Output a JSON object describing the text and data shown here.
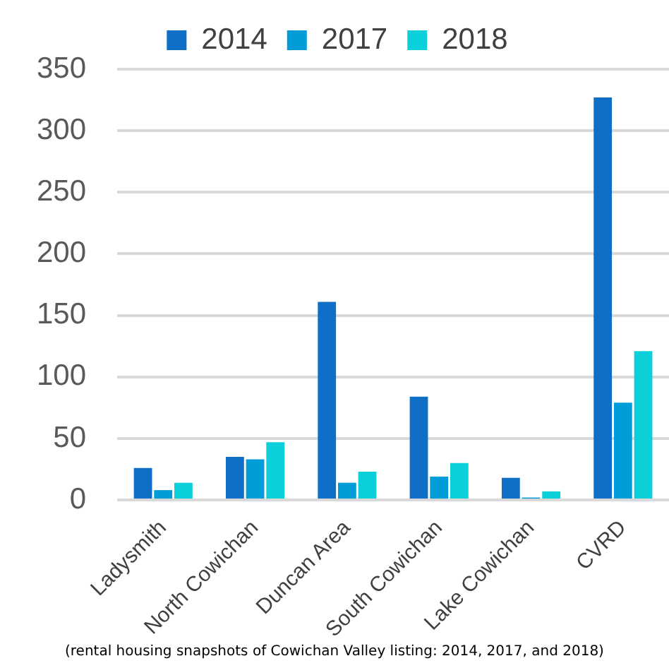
{
  "chart_data": {
    "type": "bar",
    "categories": [
      "Ladysmith",
      "North Cowichan",
      "Duncan Area",
      "South Cowichan",
      "Lake Cowichan",
      "CVRD"
    ],
    "series": [
      {
        "name": "2014",
        "color": "#0f6fc6",
        "values": [
          26,
          35,
          161,
          84,
          18,
          327
        ]
      },
      {
        "name": "2017",
        "color": "#009dd9",
        "values": [
          8,
          33,
          14,
          19,
          2,
          79
        ]
      },
      {
        "name": "2018",
        "color": "#0bd0d9",
        "values": [
          14,
          47,
          23,
          30,
          7,
          121
        ]
      }
    ],
    "ylim": [
      0,
      350
    ],
    "yticks": [
      0,
      50,
      100,
      150,
      200,
      250,
      300,
      350
    ],
    "grid": "y",
    "legend": "top",
    "annotations": [
      "(rental housing snapshots of Cowichan Valley listing: 2014, 2017, and 2018)"
    ]
  }
}
